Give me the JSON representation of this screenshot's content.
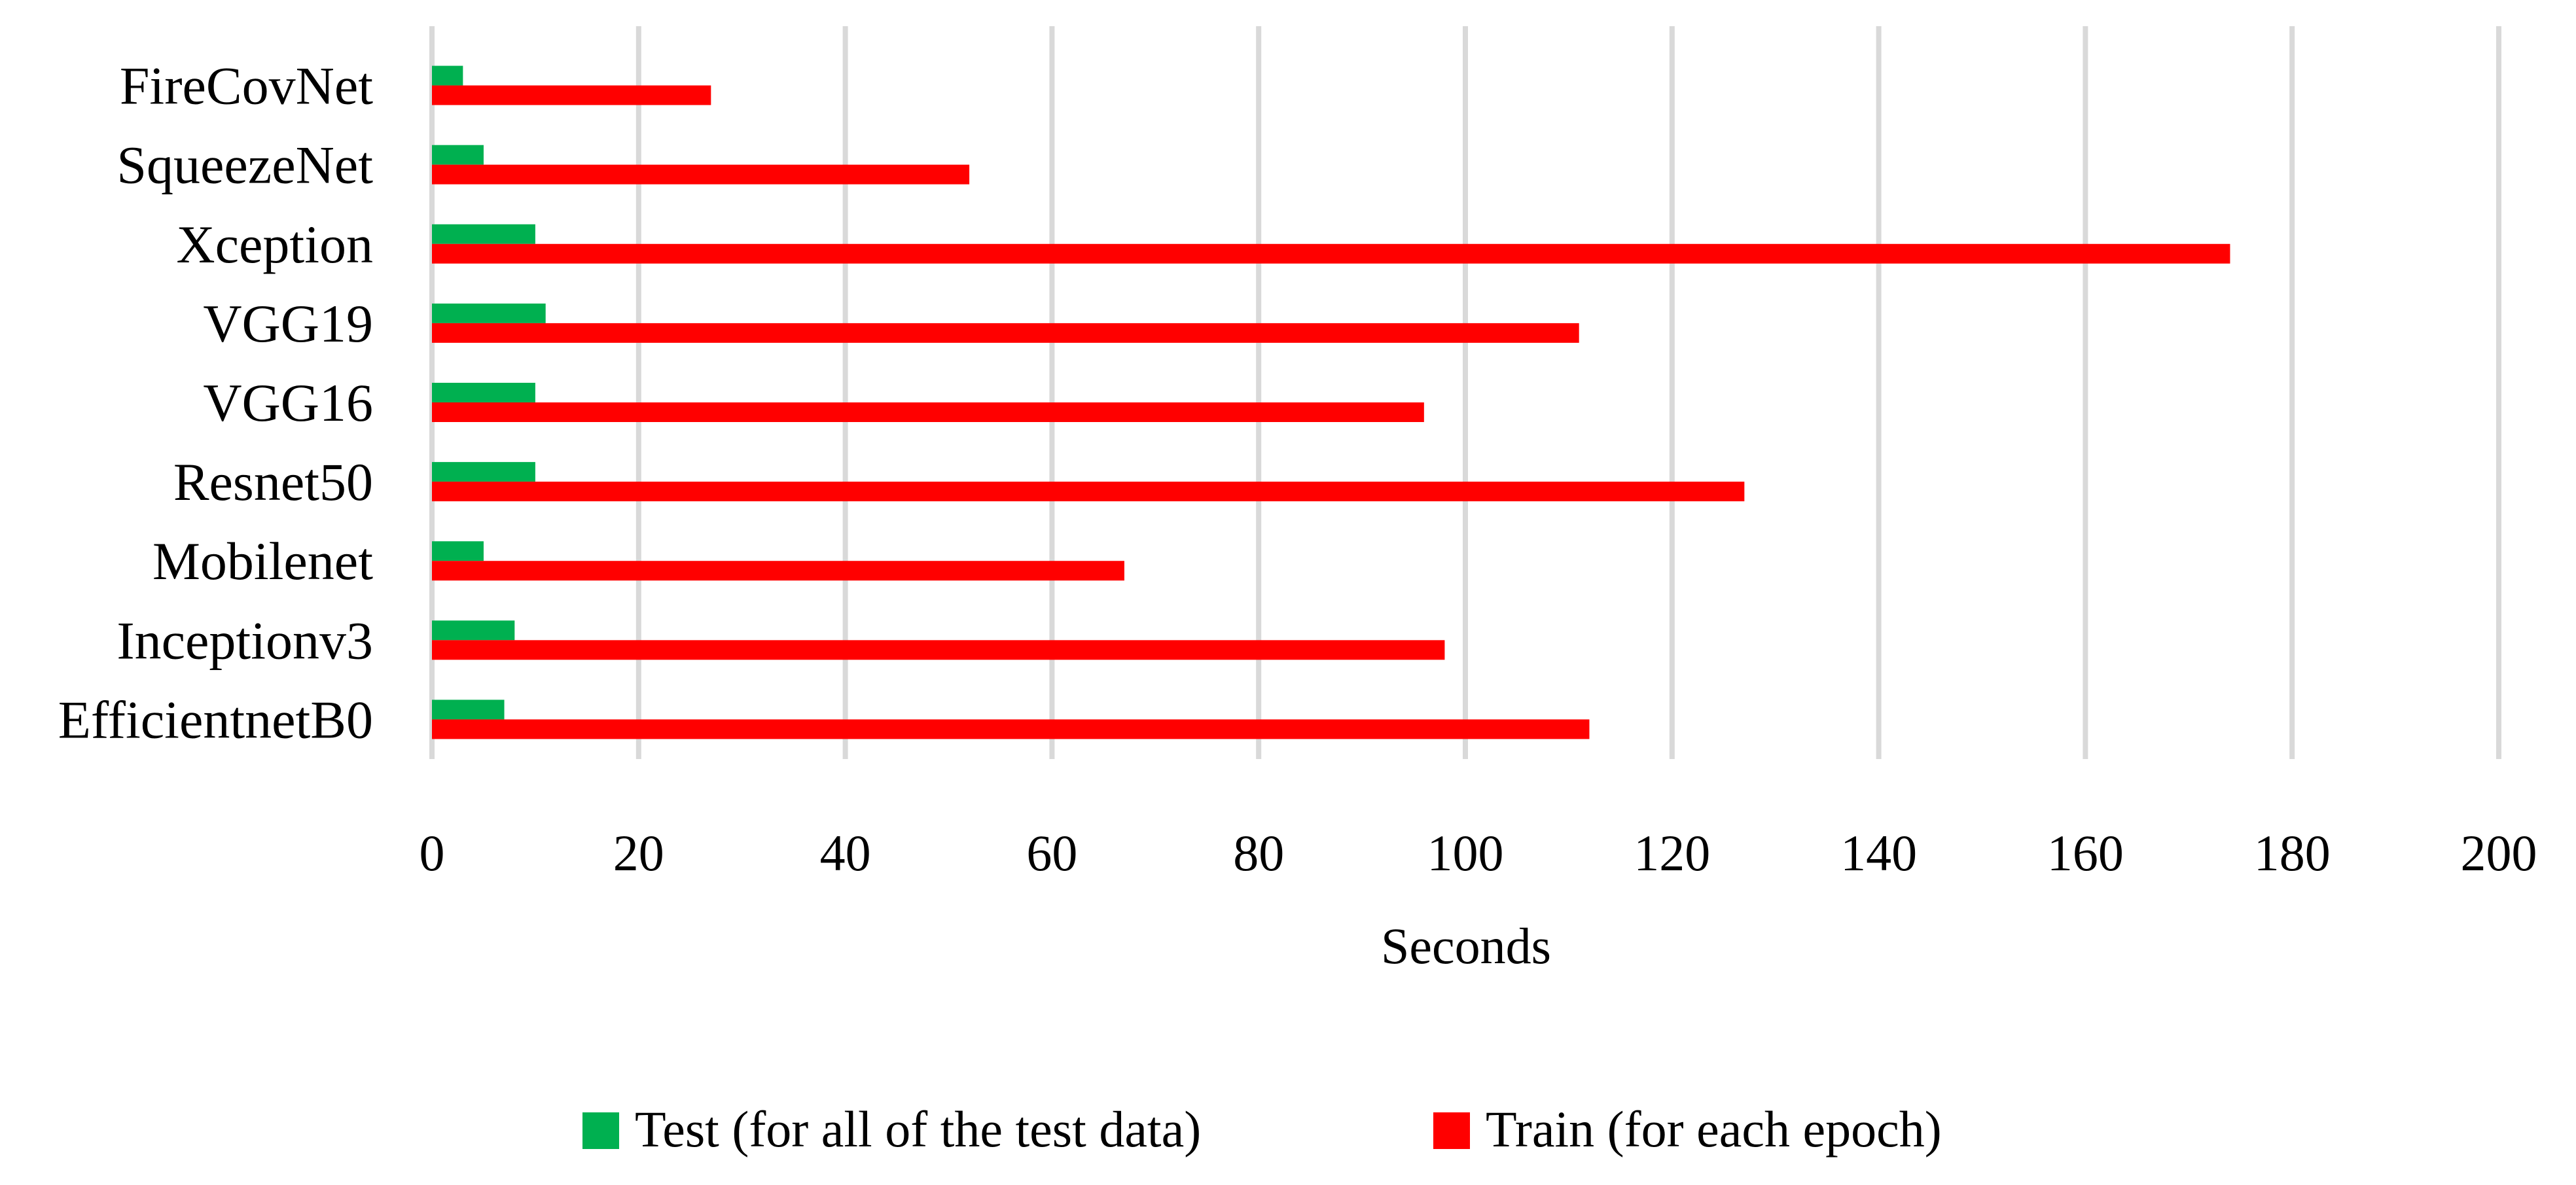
{
  "chart_data": {
    "type": "bar",
    "orientation": "horizontal",
    "categories": [
      "FireCovNet",
      "SqueezeNet",
      "Xception",
      "VGG19",
      "VGG16",
      "Resnet50",
      "Mobilenet",
      "Inceptionv3",
      "EfficientnetB0"
    ],
    "series": [
      {
        "name": "Test (for all of the test data)",
        "color": "#00b050",
        "values": [
          3,
          5,
          10,
          11,
          10,
          10,
          5,
          8,
          7
        ]
      },
      {
        "name": "Train (for each epoch)",
        "color": "#ff0000",
        "values": [
          27,
          52,
          174,
          111,
          96,
          127,
          67,
          98,
          112
        ]
      }
    ],
    "xlabel": "Seconds",
    "xlim": [
      0,
      200
    ],
    "xticks": [
      0,
      20,
      40,
      60,
      80,
      100,
      120,
      140,
      160,
      180,
      200
    ],
    "grid": "vertical",
    "legend_position": "bottom"
  }
}
